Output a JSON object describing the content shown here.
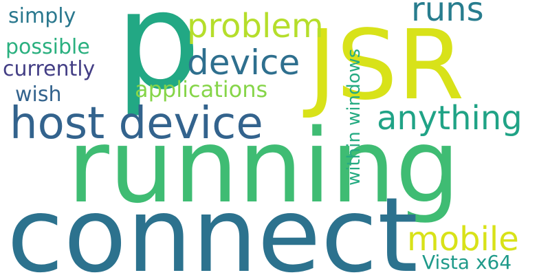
{
  "word_cloud": {
    "words": [
      {
        "text": "p",
        "color": "#22a884"
      },
      {
        "text": "running",
        "color": "#3fbc73"
      },
      {
        "text": "connect",
        "color": "#2c728e"
      },
      {
        "text": "JSR",
        "color": "#d8e219"
      },
      {
        "text": "host device",
        "color": "#33638d"
      },
      {
        "text": "device",
        "color": "#2e6f8e"
      },
      {
        "text": "problem",
        "color": "#b5de2b"
      },
      {
        "text": "runs",
        "color": "#287d8e"
      },
      {
        "text": "anything",
        "color": "#20a386"
      },
      {
        "text": "mobile",
        "color": "#d8e219"
      },
      {
        "text": "Vista x64",
        "color": "#1f9a8a"
      },
      {
        "text": "simply",
        "color": "#2a788e"
      },
      {
        "text": "possible",
        "color": "#2ab07f"
      },
      {
        "text": "currently",
        "color": "#433e85"
      },
      {
        "text": "wish",
        "color": "#33638d"
      },
      {
        "text": "applications",
        "color": "#86d549"
      },
      {
        "text": "within windows",
        "color": "#25ab82"
      }
    ]
  }
}
